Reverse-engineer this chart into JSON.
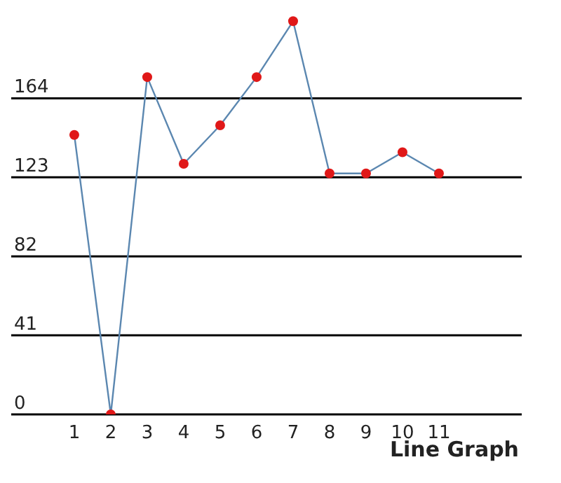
{
  "chart_data": {
    "type": "line",
    "title": "Line Graph",
    "x": [
      1,
      2,
      3,
      4,
      5,
      6,
      7,
      8,
      9,
      10,
      11
    ],
    "series": [
      {
        "color": "#5b87b0",
        "values": [
          145,
          0,
          175,
          130,
          150,
          175,
          204,
          125,
          125,
          136,
          125
        ]
      }
    ],
    "xlim": [
      -0.73,
      13.27
    ],
    "xticks": [
      1,
      2,
      3,
      4,
      5,
      6,
      7,
      8,
      9,
      10,
      11
    ],
    "ylim": [
      0,
      215
    ],
    "yticks": [
      0,
      41,
      82,
      123,
      164
    ],
    "grid": "y",
    "marker": "circle",
    "line_style": "solid",
    "legend": false
  }
}
